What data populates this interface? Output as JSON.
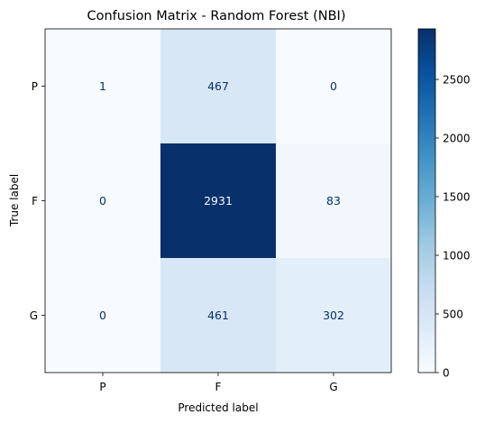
{
  "chart_data": {
    "type": "heatmap",
    "title": "Confusion Matrix - Random Forest (NBI)",
    "xlabel": "Predicted label",
    "ylabel": "True label",
    "x_categories": [
      "P",
      "F",
      "G"
    ],
    "y_categories": [
      "P",
      "F",
      "G"
    ],
    "matrix": [
      [
        1,
        467,
        0
      ],
      [
        0,
        2931,
        83
      ],
      [
        0,
        461,
        302
      ]
    ],
    "colormap": "Blues",
    "colorbar": {
      "range": [
        0,
        2931
      ],
      "ticks": [
        0,
        500,
        1000,
        1500,
        2000,
        2500
      ]
    },
    "grid": false
  }
}
